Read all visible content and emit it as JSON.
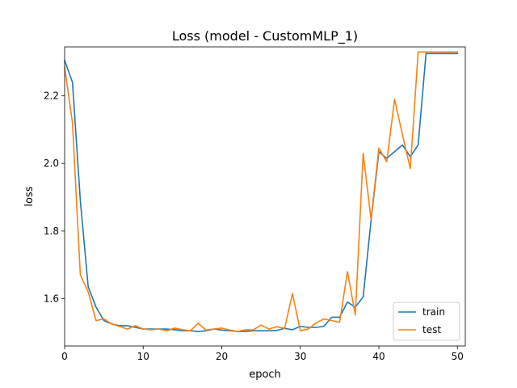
{
  "chart_data": {
    "type": "line",
    "title": "Loss (model - CustomMLP_1)",
    "xlabel": "epoch",
    "ylabel": "loss",
    "xlim": [
      0,
      51
    ],
    "ylim": [
      1.46,
      2.345
    ],
    "xticks": [
      0,
      10,
      20,
      30,
      40,
      50
    ],
    "xtick_labels": [
      "0",
      "10",
      "20",
      "30",
      "40",
      "50"
    ],
    "yticks": [
      1.6,
      1.8,
      2.0,
      2.2
    ],
    "ytick_labels": [
      "1.6",
      "1.8",
      "2.0",
      "2.2"
    ],
    "grid": false,
    "legend_position": "lower-right",
    "x": [
      0,
      1,
      2,
      3,
      4,
      5,
      6,
      7,
      8,
      9,
      10,
      11,
      12,
      13,
      14,
      15,
      16,
      17,
      18,
      19,
      20,
      21,
      22,
      23,
      24,
      25,
      26,
      27,
      28,
      29,
      30,
      31,
      32,
      33,
      34,
      35,
      36,
      37,
      38,
      39,
      40,
      41,
      42,
      43,
      44,
      45,
      46,
      47,
      48,
      49,
      50
    ],
    "series": [
      {
        "name": "train",
        "color": "#1f77b4",
        "values": [
          2.305,
          2.24,
          1.89,
          1.635,
          1.575,
          1.535,
          1.525,
          1.52,
          1.52,
          1.515,
          1.51,
          1.51,
          1.51,
          1.51,
          1.508,
          1.505,
          1.505,
          1.503,
          1.505,
          1.51,
          1.507,
          1.505,
          1.503,
          1.503,
          1.505,
          1.505,
          1.505,
          1.506,
          1.512,
          1.508,
          1.518,
          1.515,
          1.515,
          1.518,
          1.545,
          1.545,
          1.59,
          1.575,
          1.605,
          1.83,
          2.035,
          2.015,
          2.035,
          2.055,
          2.02,
          2.055,
          2.325,
          2.325,
          2.325,
          2.325,
          2.325
        ]
      },
      {
        "name": "test",
        "color": "#ff7f0e",
        "values": [
          2.285,
          2.12,
          1.67,
          1.62,
          1.535,
          1.54,
          1.525,
          1.518,
          1.51,
          1.52,
          1.51,
          1.508,
          1.51,
          1.505,
          1.513,
          1.508,
          1.505,
          1.527,
          1.507,
          1.51,
          1.513,
          1.507,
          1.503,
          1.508,
          1.507,
          1.522,
          1.51,
          1.517,
          1.512,
          1.615,
          1.505,
          1.51,
          1.528,
          1.54,
          1.535,
          1.53,
          1.68,
          1.552,
          2.03,
          1.835,
          2.045,
          2.005,
          2.19,
          2.085,
          1.985,
          2.33,
          2.33,
          2.33,
          2.33,
          2.33,
          2.33
        ]
      }
    ]
  }
}
